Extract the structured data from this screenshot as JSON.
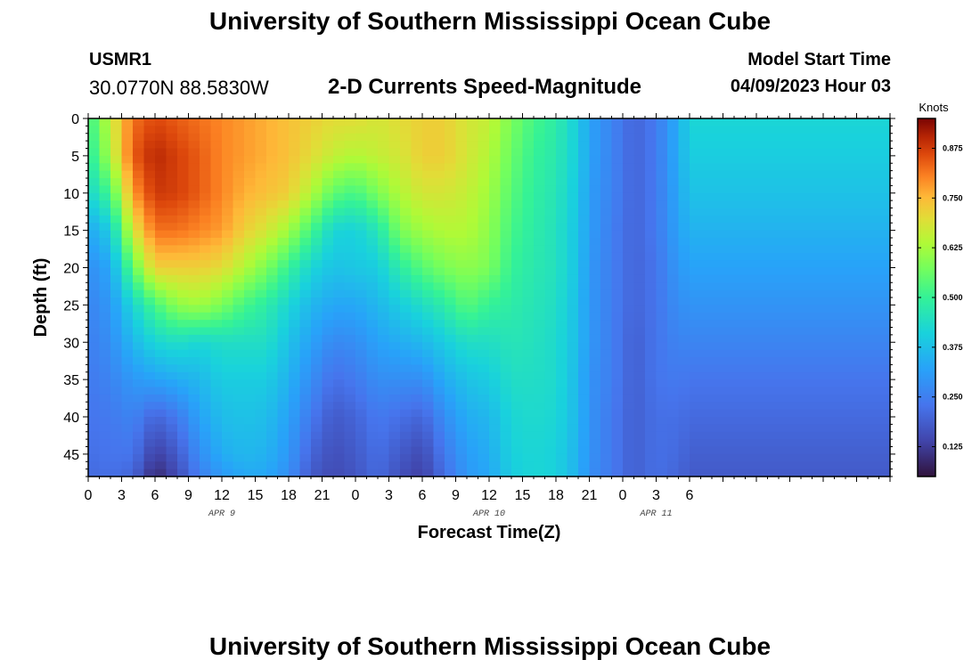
{
  "header": {
    "title": "University of Southern Mississippi Ocean Cube",
    "station_id": "USMR1",
    "station_coords": "30.0770N  88.5830W",
    "model_start_label": "Model Start Time",
    "model_start_value": "04/09/2023 Hour 03"
  },
  "footer": {
    "title": "University of Southern Mississippi Ocean Cube"
  },
  "chart_data": {
    "type": "heatmap",
    "title": "2-D Currents Speed-Magnitude",
    "xlabel": "Forecast Time(Z)",
    "ylabel": "Depth (ft)",
    "x_range_hours": [
      0,
      72
    ],
    "x_tick_labels": [
      "0",
      "3",
      "6",
      "9",
      "12",
      "15",
      "18",
      "21",
      "0",
      "3",
      "6",
      "9",
      "12",
      "15",
      "18",
      "21",
      "0",
      "3",
      "6"
    ],
    "x_tick_hours": [
      0,
      3,
      6,
      9,
      12,
      15,
      18,
      21,
      24,
      27,
      30,
      33,
      36,
      39,
      42,
      45,
      48,
      51,
      54
    ],
    "date_labels": [
      {
        "text": "APR 9",
        "hour": 12
      },
      {
        "text": "APR 10",
        "hour": 36
      },
      {
        "text": "APR 11",
        "hour": 51
      }
    ],
    "y_range_ft": [
      0,
      48
    ],
    "y_tick_labels": [
      "0",
      "5",
      "10",
      "15",
      "20",
      "25",
      "30",
      "35",
      "40",
      "45"
    ],
    "y_tick_values": [
      0,
      5,
      10,
      15,
      20,
      25,
      30,
      35,
      40,
      45
    ],
    "colorbar": {
      "units": "Knots",
      "range": [
        0.05,
        0.95
      ],
      "tick_labels": [
        "0.125",
        "0.250",
        "0.375",
        "0.500",
        "0.625",
        "0.750",
        "0.875"
      ],
      "tick_values": [
        0.125,
        0.25,
        0.375,
        0.5,
        0.625,
        0.75,
        0.875
      ]
    },
    "speed_profile": {
      "note": "Estimated speed (knots) at depth samples per hour column",
      "depth_samples_ft": [
        0,
        5,
        10,
        15,
        20,
        25,
        30,
        35,
        40,
        45,
        48
      ],
      "columns": [
        {
          "hour": 0,
          "speed": [
            0.5,
            0.47,
            0.42,
            0.33,
            0.28,
            0.26,
            0.25,
            0.24,
            0.23,
            0.22,
            0.21
          ]
        },
        {
          "hour": 2,
          "speed": [
            0.66,
            0.63,
            0.52,
            0.4,
            0.33,
            0.3,
            0.28,
            0.26,
            0.24,
            0.23,
            0.22
          ]
        },
        {
          "hour": 4,
          "speed": [
            0.82,
            0.84,
            0.78,
            0.68,
            0.55,
            0.42,
            0.36,
            0.3,
            0.26,
            0.23,
            0.2
          ]
        },
        {
          "hour": 6,
          "speed": [
            0.86,
            0.9,
            0.88,
            0.82,
            0.72,
            0.52,
            0.42,
            0.32,
            0.2,
            0.13,
            0.09
          ]
        },
        {
          "hour": 8,
          "speed": [
            0.84,
            0.87,
            0.87,
            0.82,
            0.72,
            0.6,
            0.44,
            0.34,
            0.24,
            0.18,
            0.15
          ]
        },
        {
          "hour": 10,
          "speed": [
            0.82,
            0.84,
            0.84,
            0.8,
            0.72,
            0.62,
            0.42,
            0.36,
            0.32,
            0.28,
            0.25
          ]
        },
        {
          "hour": 12,
          "speed": [
            0.8,
            0.8,
            0.8,
            0.78,
            0.7,
            0.58,
            0.44,
            0.4,
            0.37,
            0.34,
            0.3
          ]
        },
        {
          "hour": 14,
          "speed": [
            0.78,
            0.78,
            0.76,
            0.72,
            0.64,
            0.52,
            0.44,
            0.4,
            0.38,
            0.36,
            0.33
          ]
        },
        {
          "hour": 16,
          "speed": [
            0.76,
            0.76,
            0.74,
            0.68,
            0.58,
            0.48,
            0.44,
            0.4,
            0.37,
            0.35,
            0.33
          ]
        },
        {
          "hour": 18,
          "speed": [
            0.74,
            0.74,
            0.72,
            0.62,
            0.5,
            0.42,
            0.38,
            0.35,
            0.32,
            0.3,
            0.28
          ]
        },
        {
          "hour": 20,
          "speed": [
            0.72,
            0.7,
            0.64,
            0.52,
            0.42,
            0.36,
            0.32,
            0.28,
            0.24,
            0.2,
            0.18
          ]
        },
        {
          "hour": 22,
          "speed": [
            0.7,
            0.66,
            0.55,
            0.42,
            0.38,
            0.33,
            0.27,
            0.22,
            0.18,
            0.16,
            0.15
          ]
        },
        {
          "hour": 24,
          "speed": [
            0.7,
            0.64,
            0.52,
            0.41,
            0.39,
            0.33,
            0.28,
            0.24,
            0.2,
            0.18,
            0.17
          ]
        },
        {
          "hour": 26,
          "speed": [
            0.68,
            0.66,
            0.58,
            0.46,
            0.4,
            0.36,
            0.32,
            0.28,
            0.24,
            0.22,
            0.21
          ]
        },
        {
          "hour": 28,
          "speed": [
            0.7,
            0.68,
            0.64,
            0.58,
            0.48,
            0.4,
            0.34,
            0.28,
            0.22,
            0.18,
            0.16
          ]
        },
        {
          "hour": 30,
          "speed": [
            0.72,
            0.72,
            0.68,
            0.62,
            0.54,
            0.44,
            0.36,
            0.28,
            0.2,
            0.15,
            0.13
          ]
        },
        {
          "hour": 32,
          "speed": [
            0.72,
            0.72,
            0.68,
            0.64,
            0.58,
            0.48,
            0.4,
            0.34,
            0.28,
            0.24,
            0.22
          ]
        },
        {
          "hour": 34,
          "speed": [
            0.68,
            0.68,
            0.66,
            0.64,
            0.6,
            0.54,
            0.44,
            0.38,
            0.34,
            0.31,
            0.3
          ]
        },
        {
          "hour": 36,
          "speed": [
            0.66,
            0.64,
            0.62,
            0.6,
            0.58,
            0.5,
            0.44,
            0.4,
            0.36,
            0.34,
            0.33
          ]
        },
        {
          "hour": 38,
          "speed": [
            0.58,
            0.56,
            0.54,
            0.52,
            0.5,
            0.48,
            0.46,
            0.44,
            0.42,
            0.41,
            0.4
          ]
        },
        {
          "hour": 40,
          "speed": [
            0.52,
            0.5,
            0.49,
            0.48,
            0.47,
            0.46,
            0.45,
            0.44,
            0.43,
            0.42,
            0.42
          ]
        },
        {
          "hour": 42,
          "speed": [
            0.48,
            0.47,
            0.46,
            0.45,
            0.45,
            0.44,
            0.43,
            0.43,
            0.42,
            0.41,
            0.41
          ]
        },
        {
          "hour": 44,
          "speed": [
            0.4,
            0.4,
            0.39,
            0.38,
            0.38,
            0.37,
            0.37,
            0.36,
            0.36,
            0.35,
            0.35
          ]
        },
        {
          "hour": 45,
          "speed": [
            0.32,
            0.32,
            0.31,
            0.31,
            0.3,
            0.3,
            0.3,
            0.29,
            0.29,
            0.29,
            0.28
          ]
        },
        {
          "hour": 47,
          "speed": [
            0.26,
            0.26,
            0.26,
            0.25,
            0.25,
            0.25,
            0.25,
            0.25,
            0.24,
            0.24,
            0.24
          ]
        },
        {
          "hour": 49,
          "speed": [
            0.2,
            0.2,
            0.2,
            0.2,
            0.2,
            0.2,
            0.19,
            0.19,
            0.19,
            0.19,
            0.19
          ]
        },
        {
          "hour": 51,
          "speed": [
            0.24,
            0.24,
            0.24,
            0.24,
            0.23,
            0.23,
            0.23,
            0.23,
            0.22,
            0.22,
            0.22
          ]
        },
        {
          "hour": 53,
          "speed": [
            0.34,
            0.34,
            0.33,
            0.32,
            0.3,
            0.28,
            0.26,
            0.24,
            0.22,
            0.21,
            0.2
          ]
        },
        {
          "hour": 54,
          "speed": [
            0.42,
            0.4,
            0.38,
            0.35,
            0.32,
            0.29,
            0.26,
            0.23,
            0.21,
            0.19,
            0.18
          ]
        }
      ]
    }
  }
}
